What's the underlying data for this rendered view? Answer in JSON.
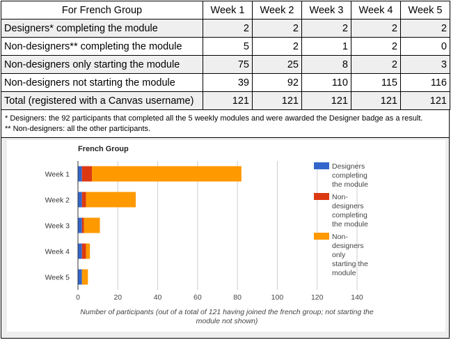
{
  "table": {
    "headers": [
      "For French Group",
      "Week 1",
      "Week 2",
      "Week 3",
      "Week 4",
      "Week 5"
    ],
    "rows": [
      {
        "label": "Designers* completing the module",
        "values": [
          "2",
          "2",
          "2",
          "2",
          "2"
        ]
      },
      {
        "label": "Non-designers** completing the module",
        "values": [
          "5",
          "2",
          "1",
          "2",
          "0"
        ]
      },
      {
        "label": "Non-designers only starting the module",
        "values": [
          "75",
          "25",
          "8",
          "2",
          "3"
        ]
      },
      {
        "label": "Non-designers not starting the module",
        "values": [
          "39",
          "92",
          "110",
          "115",
          "116"
        ]
      },
      {
        "label": "Total (registered with a Canvas username)",
        "values": [
          "121",
          "121",
          "121",
          "121",
          "121"
        ]
      }
    ]
  },
  "footnotes": {
    "designers": "* Designers: the 92 participants that completed all the 5 weekly modules and were awarded the Designer badge as a result.",
    "non_designers": "** Non-designers: all the other participants."
  },
  "chart_data": {
    "type": "bar",
    "orientation": "horizontal",
    "stacked": true,
    "title": "French Group",
    "categories": [
      "Week 1",
      "Week 2",
      "Week 3",
      "Week 4",
      "Week 5"
    ],
    "series": [
      {
        "name": "Designers completing the module",
        "color": "#3366cc",
        "values": [
          2,
          2,
          2,
          2,
          2
        ]
      },
      {
        "name": "Non-designers completing the module",
        "color": "#dc3912",
        "values": [
          5,
          2,
          1,
          2,
          0
        ]
      },
      {
        "name": "Non-designers only starting the module",
        "color": "#ff9900",
        "values": [
          75,
          25,
          8,
          2,
          3
        ]
      }
    ],
    "xlabel": "Number of participants (out of a total of 121 having joined the french group; not starting the module not shown)",
    "xlim": [
      0,
      140
    ],
    "xticks": [
      0,
      20,
      40,
      60,
      80,
      100,
      120,
      140
    ],
    "grid": true,
    "legend": "right"
  }
}
